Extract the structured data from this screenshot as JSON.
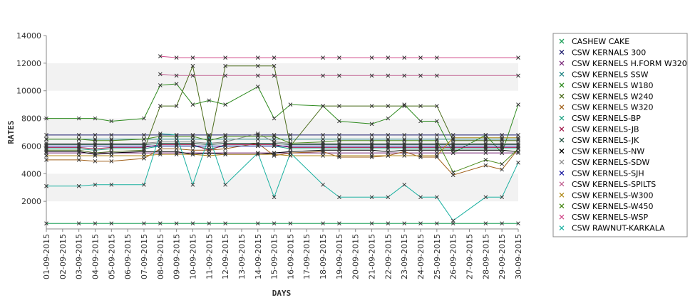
{
  "chart_data": {
    "type": "line",
    "title": "",
    "xlabel": "DAYS",
    "ylabel": "RATES",
    "ylim": [
      0,
      14000
    ],
    "yticks": [
      2000,
      4000,
      6000,
      8000,
      10000,
      12000,
      14000
    ],
    "grid": "alternating horizontal bands",
    "legend_position": "right",
    "categories": [
      "01-09-2015",
      "02-09-2015",
      "03-09-2015",
      "04-09-2015",
      "05-09-2015",
      "06-09-2015",
      "07-09-2015",
      "08-09-2015",
      "09-09-2015",
      "10-09-2015",
      "11-09-2015",
      "12-09-2015",
      "13-09-2015",
      "14-09-2015",
      "15-09-2015",
      "16-09-2015",
      "17-09-2015",
      "18-09-2015",
      "19-09-2015",
      "20-09-2015",
      "21-09-2015",
      "22-09-2015",
      "23-09-2015",
      "24-09-2015",
      "25-09-2015",
      "26-09-2015",
      "27-09-2015",
      "28-09-2015",
      "29-09-2015",
      "30-09-2015"
    ],
    "series": [
      {
        "name": "CASHEW CAKE",
        "color": "#1fa05a",
        "values": [
          400,
          null,
          400,
          400,
          400,
          null,
          400,
          400,
          400,
          400,
          400,
          400,
          null,
          400,
          400,
          400,
          null,
          400,
          400,
          null,
          400,
          400,
          400,
          400,
          400,
          400,
          null,
          400,
          400,
          400
        ]
      },
      {
        "name": "CSW KERNALS 300",
        "color": "#1a1a6b",
        "values": [
          6800,
          null,
          6800,
          6800,
          6800,
          null,
          6800,
          6800,
          6800,
          6800,
          6800,
          6800,
          null,
          6800,
          6800,
          6800,
          null,
          6800,
          6800,
          null,
          6800,
          6800,
          6800,
          6800,
          6800,
          6800,
          null,
          6800,
          6800,
          6800
        ]
      },
      {
        "name": "CSW KERNELS H.FORM W320",
        "color": "#7a2a7a",
        "values": [
          5500,
          null,
          5500,
          5500,
          5500,
          null,
          5500,
          5500,
          5500,
          5500,
          5500,
          5500,
          null,
          5500,
          5500,
          5500,
          null,
          5500,
          5500,
          null,
          5500,
          5500,
          5500,
          5500,
          5500,
          5500,
          null,
          5500,
          5500,
          5500
        ]
      },
      {
        "name": "CSW KERNELS SSW",
        "color": "#1a8080",
        "values": [
          6500,
          null,
          6500,
          6500,
          6500,
          null,
          6500,
          6500,
          6500,
          6500,
          6500,
          6500,
          null,
          6500,
          6500,
          6500,
          null,
          6500,
          6500,
          null,
          6500,
          6500,
          6500,
          6500,
          6500,
          6500,
          null,
          6500,
          6500,
          6500
        ]
      },
      {
        "name": "CSW KERNELS W180",
        "color": "#2d8a1e",
        "values": [
          8000,
          null,
          8000,
          8000,
          7800,
          null,
          8000,
          10400,
          10500,
          9000,
          9300,
          9000,
          null,
          10300,
          8000,
          9000,
          null,
          8900,
          7800,
          null,
          7600,
          8000,
          9000,
          7800,
          7800,
          5500,
          null,
          6800,
          5500,
          9000
        ]
      },
      {
        "name": "CSW KERNELS W240",
        "color": "#4a6b1a",
        "values": [
          5700,
          null,
          5700,
          5500,
          5600,
          null,
          5700,
          8900,
          8900,
          11800,
          6000,
          11800,
          null,
          11800,
          11800,
          6000,
          null,
          8900,
          8900,
          null,
          8900,
          8900,
          8900,
          8900,
          8900,
          6400,
          null,
          6400,
          6400,
          6400
        ]
      },
      {
        "name": "CSW KERNELS W320",
        "color": "#a0601a",
        "values": [
          5000,
          null,
          5000,
          4900,
          4900,
          null,
          5100,
          5800,
          5800,
          5700,
          5700,
          5800,
          null,
          6200,
          5300,
          5500,
          null,
          5600,
          5200,
          null,
          5200,
          5300,
          5600,
          5200,
          5200,
          3900,
          null,
          4600,
          4300,
          5800
        ]
      },
      {
        "name": "CSW KERNELS-BP",
        "color": "#1aa080",
        "values": [
          5800,
          null,
          5800,
          5700,
          5800,
          null,
          5800,
          6000,
          6000,
          6000,
          5800,
          6000,
          null,
          6000,
          6000,
          5800,
          null,
          5800,
          5800,
          null,
          5800,
          5800,
          5800,
          5800,
          5800,
          5800,
          null,
          5800,
          5800,
          5800
        ]
      },
      {
        "name": "CSW KERNELS-JB",
        "color": "#a01a4a",
        "values": [
          5900,
          null,
          5900,
          5800,
          5900,
          null,
          5900,
          6100,
          6100,
          6100,
          5700,
          6100,
          null,
          6100,
          6100,
          5900,
          null,
          5900,
          5900,
          null,
          5900,
          5900,
          5900,
          5900,
          5900,
          5900,
          null,
          5900,
          5900,
          5900
        ]
      },
      {
        "name": "CSW KERNELS-JK",
        "color": "#1a4a3a",
        "values": [
          6100,
          null,
          6100,
          6100,
          6100,
          null,
          6100,
          6200,
          6200,
          6200,
          6100,
          6200,
          null,
          6200,
          6200,
          6100,
          null,
          6100,
          6100,
          null,
          6100,
          6100,
          6100,
          6100,
          6100,
          6100,
          null,
          6100,
          6100,
          6100
        ]
      },
      {
        "name": "CSW KERNELS-NW",
        "color": "#000000",
        "values": [
          5600,
          null,
          5600,
          5400,
          5500,
          null,
          5600,
          5600,
          5600,
          5400,
          5500,
          5400,
          null,
          5400,
          5500,
          5600,
          null,
          5700,
          5700,
          null,
          5700,
          5600,
          5700,
          5700,
          5700,
          5700,
          null,
          5700,
          5700,
          5600
        ]
      },
      {
        "name": "CSW KERNELS-SDW",
        "color": "#8a8a8a",
        "values": [
          6200,
          null,
          6200,
          6200,
          6200,
          null,
          6200,
          6300,
          6300,
          6300,
          6200,
          6300,
          null,
          6900,
          6300,
          6200,
          null,
          6200,
          6200,
          null,
          6200,
          6200,
          6200,
          6200,
          6200,
          6200,
          null,
          6200,
          6200,
          6200
        ]
      },
      {
        "name": "CSW KERNELS-SJH",
        "color": "#1a1aa0",
        "values": [
          6000,
          null,
          6000,
          6000,
          6000,
          null,
          6000,
          6000,
          6000,
          6000,
          6000,
          6000,
          null,
          6000,
          6000,
          6000,
          null,
          6000,
          6000,
          null,
          6000,
          6000,
          6000,
          6000,
          6000,
          6000,
          null,
          6000,
          6000,
          6000
        ]
      },
      {
        "name": "CSW KERNELS-SPILTS",
        "color": "#c06090",
        "values": [
          null,
          null,
          null,
          null,
          null,
          null,
          null,
          11200,
          11100,
          11100,
          null,
          11100,
          null,
          11100,
          11100,
          null,
          null,
          11100,
          11100,
          null,
          11100,
          11100,
          11100,
          11100,
          11100,
          null,
          null,
          null,
          null,
          11100
        ]
      },
      {
        "name": "CSW KERNELS-W300",
        "color": "#b08a1a",
        "values": [
          5300,
          null,
          5300,
          5300,
          5300,
          null,
          5300,
          5400,
          5400,
          5400,
          5300,
          5400,
          null,
          5400,
          5400,
          5300,
          null,
          5300,
          5300,
          null,
          5300,
          5300,
          5300,
          5300,
          5300,
          6600,
          null,
          6600,
          6600,
          6600
        ]
      },
      {
        "name": "CSW KERNELS-W450",
        "color": "#4a8a1a",
        "values": [
          6500,
          null,
          6500,
          6400,
          6400,
          null,
          6500,
          6700,
          6700,
          6700,
          6400,
          6700,
          null,
          6700,
          6700,
          6200,
          null,
          6300,
          6400,
          null,
          6400,
          6400,
          6400,
          6400,
          6400,
          4100,
          null,
          5000,
          4700,
          5800
        ]
      },
      {
        "name": "CSW KERNELS-WSP",
        "color": "#d04a8a",
        "values": [
          null,
          null,
          null,
          null,
          null,
          null,
          null,
          12500,
          12400,
          12400,
          null,
          12400,
          null,
          12400,
          12400,
          null,
          null,
          12400,
          12400,
          null,
          12400,
          12400,
          12400,
          12400,
          12400,
          null,
          null,
          null,
          null,
          12400
        ]
      },
      {
        "name": "CSW RAWNUT-KARKALA",
        "color": "#1ab0a0",
        "values": [
          3100,
          null,
          3100,
          3200,
          3200,
          null,
          3200,
          6900,
          6800,
          3200,
          6700,
          3200,
          null,
          5500,
          2300,
          5500,
          null,
          3200,
          2300,
          null,
          2300,
          2300,
          3200,
          2300,
          2300,
          600,
          null,
          2300,
          2300,
          4800
        ]
      }
    ]
  }
}
